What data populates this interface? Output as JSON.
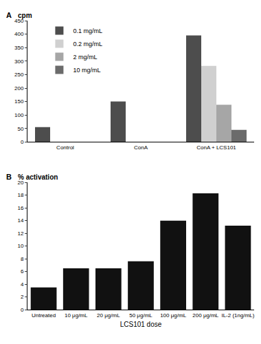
{
  "chart_data": [
    {
      "type": "bar",
      "title": "A",
      "y_label": "cpm",
      "categories": [
        "Control",
        "ConA",
        "ConA + LCS101"
      ],
      "series": [
        {
          "name": "0.1 mg/mL",
          "color": "#4d4d4d",
          "values": [
            55,
            150,
            395
          ]
        },
        {
          "name": "0.2 mg/mL",
          "color": "#d0d0d0",
          "values": [
            null,
            null,
            282
          ]
        },
        {
          "name": "2 mg/mL",
          "color": "#a6a6a6",
          "values": [
            null,
            null,
            138
          ]
        },
        {
          "name": "10 mg/mL",
          "color": "#6b6b6b",
          "values": [
            null,
            null,
            45
          ]
        }
      ],
      "ylim": [
        0,
        450
      ],
      "yticks": [
        0,
        50,
        100,
        150,
        200,
        250,
        300,
        350,
        400,
        450
      ],
      "grid": false,
      "legend": "upper left"
    },
    {
      "type": "bar",
      "title": "B",
      "y_label": "% activation",
      "x_label": "LCS101 dose",
      "categories": [
        "Untreated",
        "10 μg/mL",
        "20 μg/mL",
        "50 μg/mL",
        "100 μg/mL",
        "200 μg/mL",
        "IL-2 (1ng/mL)"
      ],
      "values": [
        3.5,
        6.5,
        6.5,
        7.6,
        14,
        18.3,
        13.2
      ],
      "color": "#111111",
      "ylim": [
        0,
        20
      ],
      "yticks": [
        0,
        2,
        4,
        6,
        8,
        10,
        12,
        14,
        16,
        18,
        20
      ],
      "grid": false
    }
  ]
}
